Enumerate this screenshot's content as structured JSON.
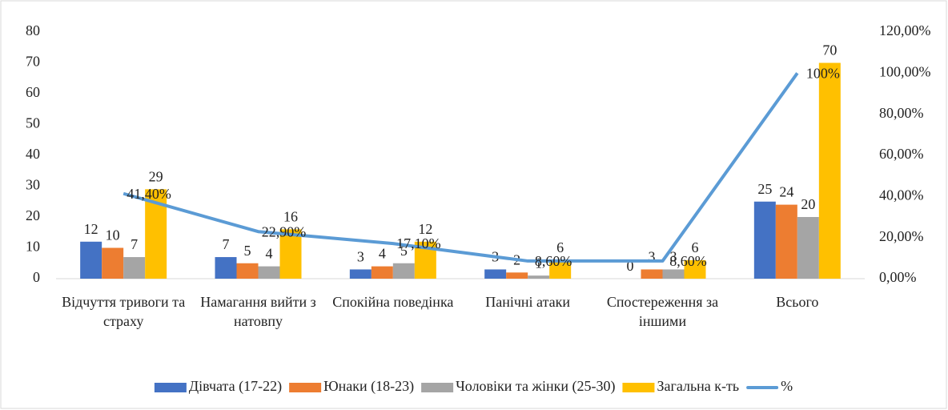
{
  "chart_data": {
    "type": "bar",
    "categories": [
      "Відчуття тривоги та страху",
      "Намагання вийти з натовпу",
      "Спокійна поведінка",
      "Панічні атаки",
      "Спостереження за іншими",
      "Всього"
    ],
    "series": [
      {
        "name": "Дівчата (17-22)",
        "color": "#4472c4",
        "values": [
          12,
          7,
          3,
          3,
          0,
          25
        ]
      },
      {
        "name": "Юнаки (18-23)",
        "color": "#ed7d31",
        "values": [
          10,
          5,
          4,
          2,
          3,
          24
        ]
      },
      {
        "name": "Чоловіки та жінки (25-30)",
        "color": "#a5a5a5",
        "values": [
          7,
          4,
          5,
          1,
          3,
          20
        ]
      },
      {
        "name": "Загальна к-ть",
        "color": "#ffc000",
        "values": [
          29,
          16,
          12,
          6,
          6,
          70
        ]
      },
      {
        "name": "%",
        "color": "#5b9bd5",
        "type": "line",
        "axis": "y2",
        "values": [
          41.4,
          22.9,
          17.1,
          8.6,
          8.6,
          100
        ],
        "value_labels": [
          "41,40%",
          "22,90%",
          "17,10%",
          "8,60%",
          "8,60%",
          "100%"
        ]
      }
    ],
    "ylim": [
      0,
      80
    ],
    "yticks": [
      0,
      10,
      20,
      30,
      40,
      50,
      60,
      70,
      80
    ],
    "y2lim": [
      0,
      120
    ],
    "y2ticks": [
      {
        "value": 0,
        "label": "0,00%"
      },
      {
        "value": 20,
        "label": "20,00%"
      },
      {
        "value": 40,
        "label": "40,00%"
      },
      {
        "value": 60,
        "label": "60,00%"
      },
      {
        "value": 80,
        "label": "80,00%"
      },
      {
        "value": 100,
        "label": "100,00%"
      },
      {
        "value": 120,
        "label": "120,00%"
      }
    ],
    "grid": false,
    "legend": "bottom"
  }
}
